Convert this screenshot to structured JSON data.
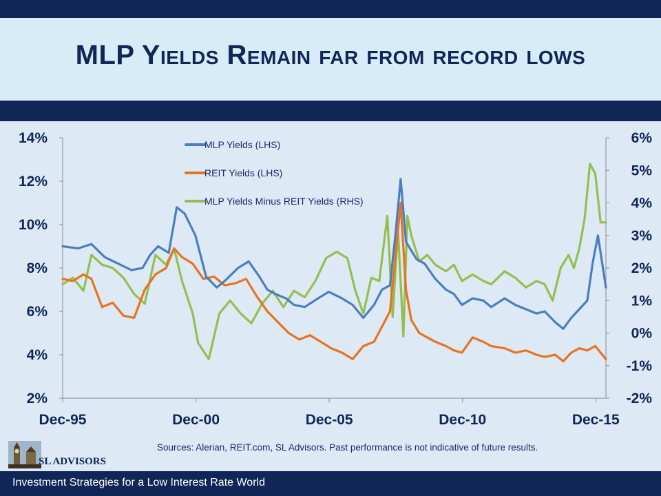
{
  "slide": {
    "title": "MLP Yields Remain far from record lows",
    "source": "Sources: Alerian, REIT.com, SL Advisors. Past performance is not indicative of future results.",
    "footer": "Investment Strategies for a Low Interest Rate World",
    "logo_text": "SL ADVISORS"
  },
  "colors": {
    "navy": "#0f2656",
    "mlp": "#4a7ebf",
    "reit": "#e8731e",
    "spread": "#92c050"
  },
  "chart_data": {
    "type": "line",
    "title": "MLP Yields Remain far from record lows",
    "xlabel": "",
    "ylabel": "",
    "x_ticks": [
      "Dec-95",
      "Dec-00",
      "Dec-05",
      "Dec-10",
      "Dec-15"
    ],
    "x_range": [
      1995.92,
      2016.3
    ],
    "y_left": {
      "ticks": [
        "2%",
        "4%",
        "6%",
        "8%",
        "10%",
        "12%",
        "14%"
      ],
      "range": [
        2,
        14
      ],
      "unit": "%"
    },
    "y_right": {
      "ticks": [
        "-2%",
        "-1%",
        "0%",
        "1%",
        "2%",
        "3%",
        "4%",
        "5%",
        "6%"
      ],
      "range": [
        -2,
        6
      ],
      "unit": "%"
    },
    "legend": [
      "MLP Yields (LHS)",
      "REIT Yields (LHS)",
      "MLP Yields Minus REIT Yields (RHS)"
    ],
    "legend_position": "top-center",
    "series": [
      {
        "name": "MLP Yields (LHS)",
        "axis": "left",
        "x": [
          1995.92,
          1996.5,
          1997.0,
          1997.5,
          1998.0,
          1998.5,
          1998.92,
          1999.2,
          1999.5,
          1999.9,
          2000.2,
          2000.5,
          2000.9,
          2001.3,
          2001.7,
          2002.0,
          2002.5,
          2002.9,
          2003.3,
          2003.6,
          2003.9,
          2004.3,
          2004.6,
          2005.0,
          2005.5,
          2005.9,
          2006.4,
          2006.8,
          2007.2,
          2007.6,
          2007.9,
          2008.2,
          2008.4,
          2008.6,
          2008.8,
          2009.0,
          2009.2,
          2009.5,
          2009.9,
          2010.3,
          2010.6,
          2010.9,
          2011.3,
          2011.7,
          2012.0,
          2012.5,
          2012.9,
          2013.3,
          2013.7,
          2014.0,
          2014.4,
          2014.7,
          2015.0,
          2015.3,
          2015.6,
          2015.8,
          2016.0,
          2016.3
        ],
        "values": [
          9.0,
          8.9,
          9.1,
          8.5,
          8.2,
          7.9,
          8.0,
          8.6,
          9.0,
          8.7,
          10.8,
          10.5,
          9.5,
          7.6,
          7.1,
          7.4,
          8.0,
          8.3,
          7.6,
          7.0,
          6.8,
          6.6,
          6.3,
          6.2,
          6.6,
          6.9,
          6.6,
          6.3,
          5.7,
          6.3,
          7.0,
          7.2,
          9.5,
          12.1,
          9.2,
          8.8,
          8.4,
          8.2,
          7.5,
          7.0,
          6.8,
          6.3,
          6.6,
          6.5,
          6.2,
          6.6,
          6.3,
          6.1,
          5.9,
          6.0,
          5.5,
          5.2,
          5.7,
          6.1,
          6.5,
          8.2,
          9.5,
          7.1
        ]
      },
      {
        "name": "REIT Yields (LHS)",
        "axis": "left",
        "x": [
          1995.92,
          1996.3,
          1996.7,
          1997.0,
          1997.4,
          1997.8,
          1998.2,
          1998.6,
          1999.0,
          1999.4,
          1999.8,
          2000.1,
          2000.4,
          2000.8,
          2001.2,
          2001.6,
          2002.0,
          2002.4,
          2002.8,
          2003.2,
          2003.6,
          2004.0,
          2004.4,
          2004.8,
          2005.2,
          2005.6,
          2006.0,
          2006.4,
          2006.8,
          2007.2,
          2007.6,
          2007.9,
          2008.2,
          2008.4,
          2008.6,
          2008.8,
          2009.0,
          2009.3,
          2009.6,
          2009.9,
          2010.3,
          2010.6,
          2010.9,
          2011.3,
          2011.7,
          2012.0,
          2012.5,
          2012.9,
          2013.3,
          2013.7,
          2014.0,
          2014.4,
          2014.7,
          2015.0,
          2015.3,
          2015.6,
          2015.9,
          2016.3
        ],
        "values": [
          7.5,
          7.4,
          7.7,
          7.5,
          6.2,
          6.4,
          5.8,
          5.7,
          7.0,
          7.7,
          8.0,
          8.9,
          8.5,
          8.2,
          7.5,
          7.6,
          7.2,
          7.3,
          7.5,
          6.7,
          6.0,
          5.5,
          5.0,
          4.7,
          4.9,
          4.6,
          4.3,
          4.1,
          3.8,
          4.4,
          4.6,
          5.3,
          6.0,
          8.5,
          11.0,
          7.0,
          5.6,
          5.0,
          4.8,
          4.6,
          4.4,
          4.2,
          4.1,
          4.8,
          4.6,
          4.4,
          4.3,
          4.1,
          4.2,
          4.0,
          3.9,
          4.0,
          3.7,
          4.1,
          4.3,
          4.2,
          4.4,
          3.8
        ]
      },
      {
        "name": "MLP Yields Minus REIT Yields (RHS)",
        "axis": "right",
        "x": [
          1995.92,
          1996.3,
          1996.7,
          1997.0,
          1997.4,
          1997.8,
          1998.2,
          1998.6,
          1999.0,
          1999.4,
          1999.8,
          2000.1,
          2000.4,
          2000.8,
          2001.0,
          2001.4,
          2001.8,
          2002.2,
          2002.6,
          2003.0,
          2003.4,
          2003.8,
          2004.2,
          2004.6,
          2005.0,
          2005.4,
          2005.8,
          2006.2,
          2006.6,
          2006.9,
          2007.2,
          2007.5,
          2007.8,
          2008.1,
          2008.3,
          2008.5,
          2008.7,
          2008.85,
          2009.0,
          2009.3,
          2009.6,
          2009.9,
          2010.3,
          2010.6,
          2010.9,
          2011.3,
          2011.7,
          2012.0,
          2012.5,
          2012.9,
          2013.3,
          2013.7,
          2014.0,
          2014.3,
          2014.6,
          2014.9,
          2015.1,
          2015.3,
          2015.5,
          2015.7,
          2015.9,
          2016.1,
          2016.3
        ],
        "values": [
          1.5,
          1.7,
          1.3,
          2.4,
          2.1,
          2.0,
          1.7,
          1.2,
          0.9,
          2.4,
          2.1,
          2.6,
          1.6,
          0.6,
          -0.3,
          -0.8,
          0.6,
          1.0,
          0.6,
          0.3,
          0.9,
          1.3,
          0.8,
          1.3,
          1.1,
          1.6,
          2.3,
          2.5,
          2.3,
          1.3,
          0.6,
          1.7,
          1.6,
          3.6,
          0.5,
          3.2,
          -0.1,
          3.6,
          3.0,
          2.2,
          2.4,
          2.1,
          1.9,
          2.1,
          1.6,
          1.8,
          1.6,
          1.5,
          1.9,
          1.7,
          1.4,
          1.6,
          1.5,
          1.0,
          2.0,
          2.4,
          2.0,
          2.6,
          3.5,
          5.2,
          4.9,
          3.4,
          3.4
        ]
      }
    ]
  }
}
